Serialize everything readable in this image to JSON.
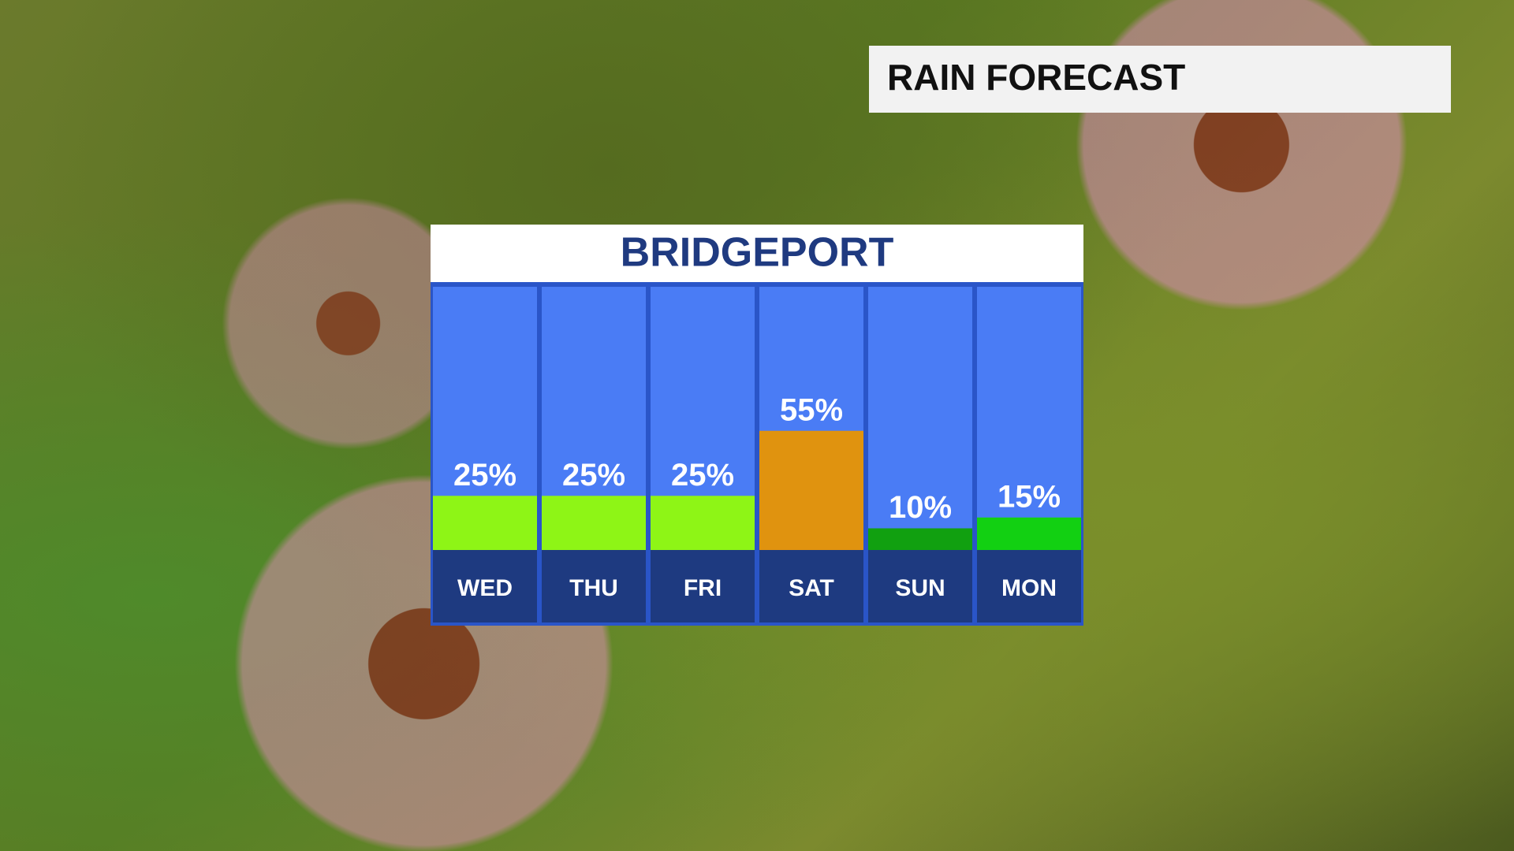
{
  "chart_data": {
    "type": "bar",
    "title": "RAIN FORECAST",
    "subtitle": "BRIDGEPORT",
    "categories": [
      "WED",
      "THU",
      "FRI",
      "SAT",
      "SUN",
      "MON"
    ],
    "values": [
      25,
      25,
      25,
      55,
      10,
      15
    ],
    "value_labels": [
      "25%",
      "25%",
      "25%",
      "55%",
      "10%",
      "15%"
    ],
    "colors": [
      "#8ef516",
      "#8ef516",
      "#8ef516",
      "#e0930f",
      "#11a010",
      "#12d012"
    ]
  }
}
